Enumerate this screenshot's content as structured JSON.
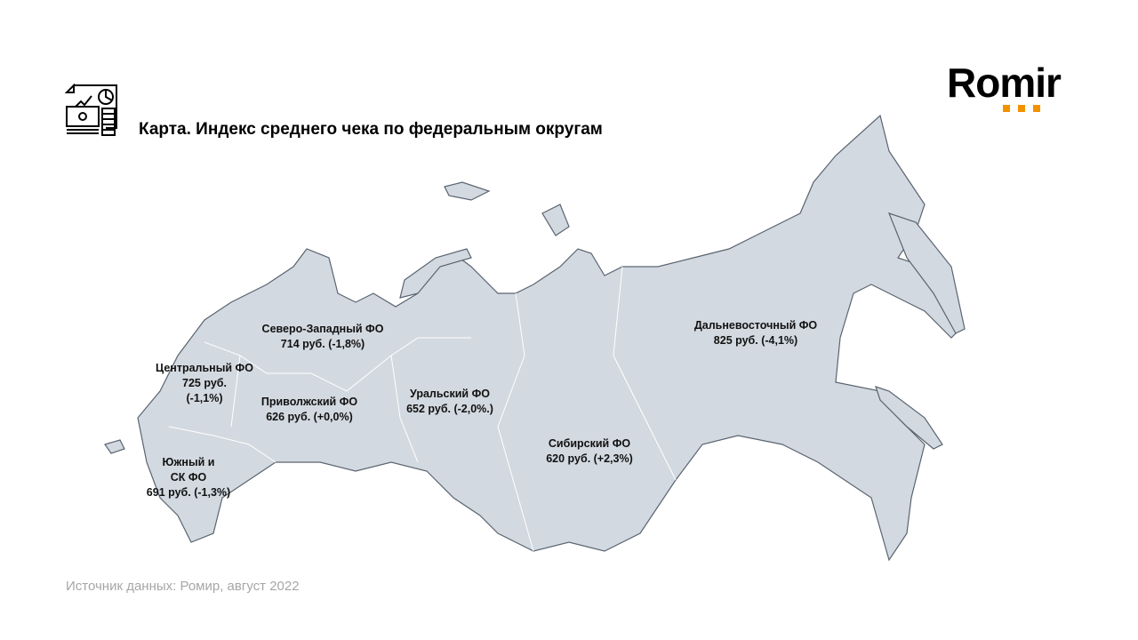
{
  "header": {
    "title": "Карта. Индекс среднего чека по федеральным округам",
    "logo": "Romir",
    "icon": "finance-report-icon"
  },
  "map": {
    "fill_color": "#d3d9e0",
    "border_color": "#5a6470",
    "regions": [
      {
        "name": "Северо-Западный ФО",
        "value": "714 руб. (-1,8%)"
      },
      {
        "name": "Центральный ФО",
        "value_line1": "725 руб.",
        "value_line2": "(-1,1%)"
      },
      {
        "name": "Приволжский ФО",
        "value": "626 руб. (+0,0%)"
      },
      {
        "name": "Южный и",
        "name_line2": "СК ФО",
        "value": "691 руб. (-1,3%)"
      },
      {
        "name": "Уральский ФО",
        "value": "652 руб. (-2,0%.)"
      },
      {
        "name": "Сибирский ФО",
        "value": "620 руб. (+2,3%)"
      },
      {
        "name": "Дальневосточный ФО",
        "value": "825 руб. (-4,1%)"
      }
    ]
  },
  "footer": {
    "source": "Источник данных: Ромир, август 2022"
  }
}
